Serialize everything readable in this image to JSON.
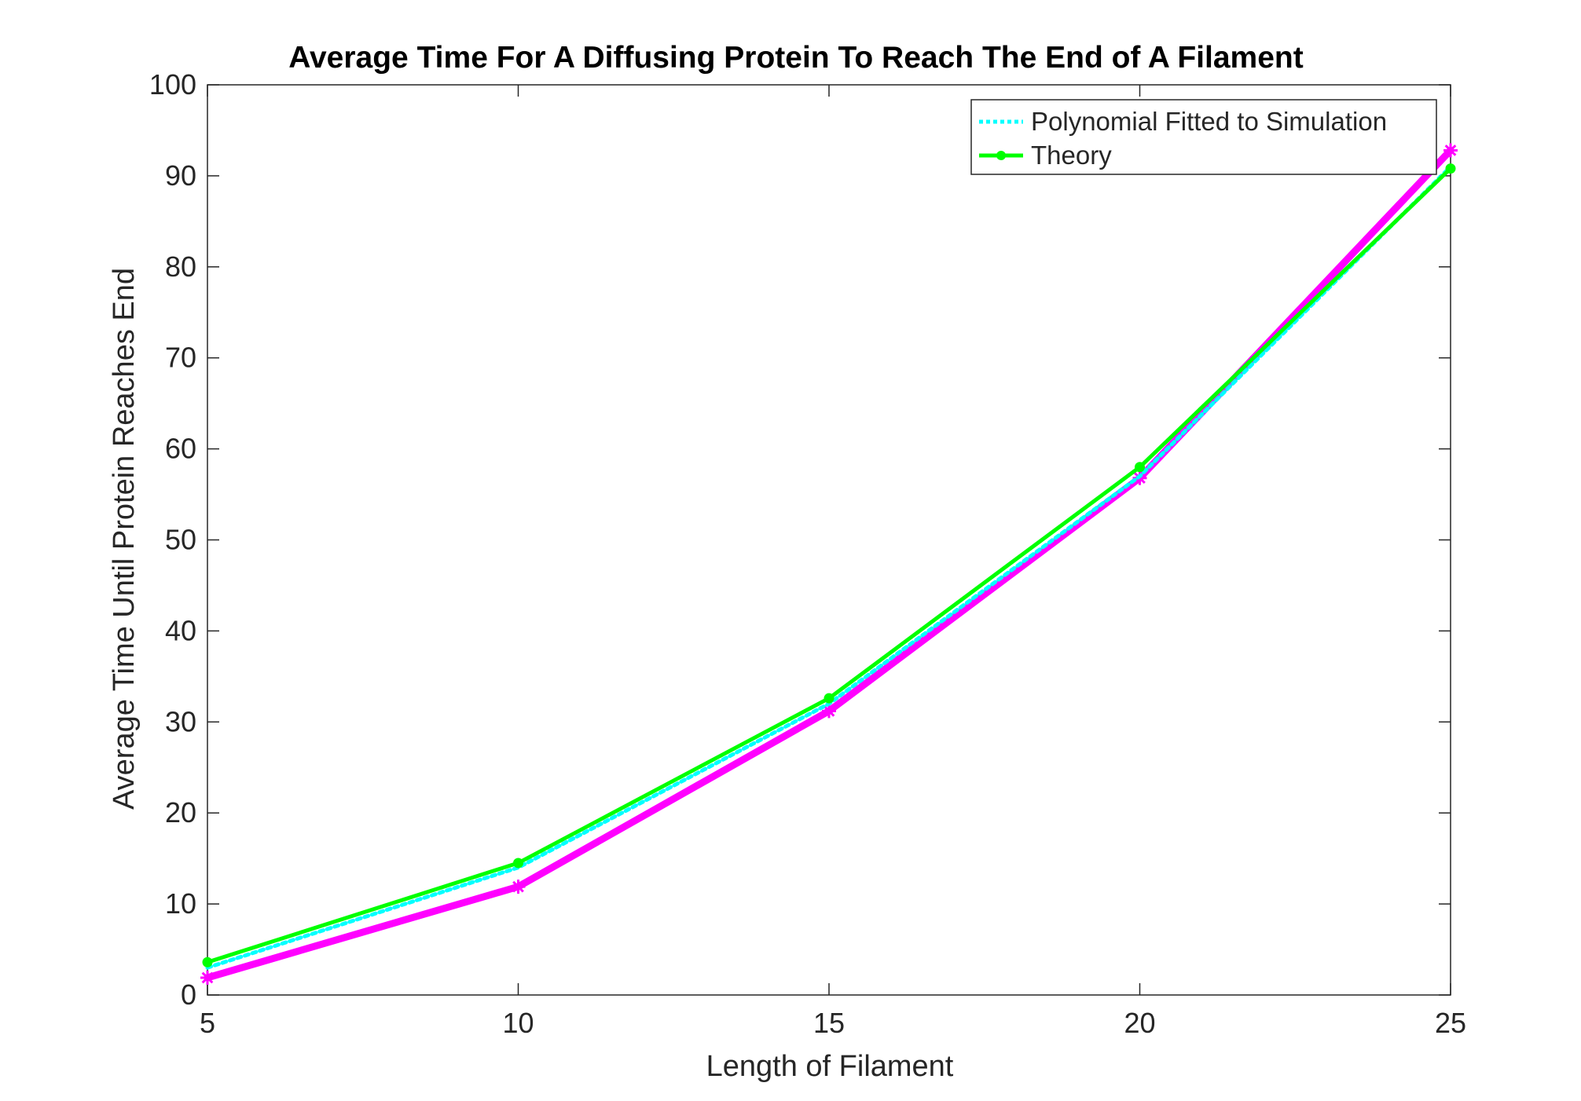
{
  "chart_data": {
    "type": "line",
    "title": "Average Time For A Diffusing Protein To Reach The End of A Filament",
    "xlabel": "Length of Filament",
    "ylabel": "Average Time Until Protein Reaches End",
    "xlim": [
      5,
      25
    ],
    "ylim": [
      0,
      100
    ],
    "xticks": [
      5,
      10,
      15,
      20,
      25
    ],
    "yticks": [
      0,
      10,
      20,
      30,
      40,
      50,
      60,
      70,
      80,
      90,
      100
    ],
    "grid": false,
    "legend_position": "top-right",
    "x": [
      5,
      10,
      15,
      20,
      25
    ],
    "series": [
      {
        "key": "simulation",
        "values": [
          1.9,
          11.9,
          31.2,
          56.8,
          92.8
        ],
        "color": "#ff00ff",
        "style": "solid",
        "marker": "star"
      },
      {
        "key": "polynomial",
        "name": "Polynomial Fitted to Simulation",
        "values": [
          3.0,
          14.0,
          32.0,
          57.0,
          91.0
        ],
        "color": "#00ffff",
        "style": "dotted",
        "marker": "none"
      },
      {
        "key": "theory",
        "name": "Theory",
        "values": [
          3.6,
          14.5,
          32.6,
          58.0,
          90.8
        ],
        "color": "#00ff00",
        "style": "solid",
        "marker": "circle"
      }
    ]
  }
}
